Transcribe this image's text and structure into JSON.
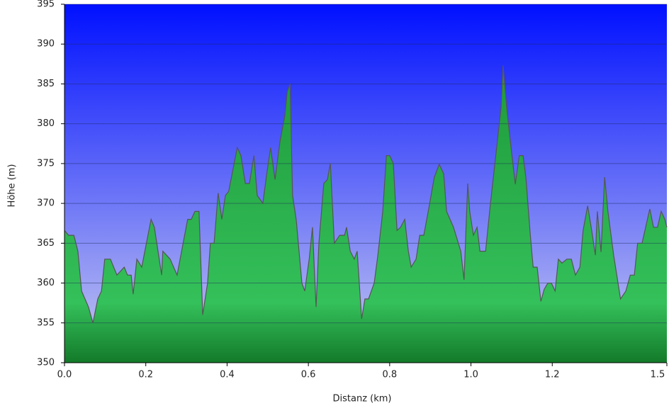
{
  "chart_data": {
    "type": "area",
    "x_label": "Distanz   (km)",
    "y_label": "Höhe (m)",
    "x": [
      0,
      0.01,
      0.023,
      0.033,
      0.042,
      0.059,
      0.07,
      0.082,
      0.091,
      0.099,
      0.113,
      0.129,
      0.147,
      0.155,
      0.164,
      0.169,
      0.178,
      0.19,
      0.213,
      0.221,
      0.239,
      0.242,
      0.26,
      0.277,
      0.303,
      0.312,
      0.321,
      0.331,
      0.34,
      0.352,
      0.359,
      0.368,
      0.378,
      0.387,
      0.396,
      0.404,
      0.425,
      0.434,
      0.445,
      0.455,
      0.466,
      0.474,
      0.488,
      0.497,
      0.507,
      0.518,
      0.53,
      0.542,
      0.548,
      0.555,
      0.561,
      0.57,
      0.584,
      0.591,
      0.602,
      0.61,
      0.619,
      0.626,
      0.638,
      0.647,
      0.654,
      0.664,
      0.677,
      0.689,
      0.694,
      0.703,
      0.713,
      0.72,
      0.731,
      0.739,
      0.748,
      0.762,
      0.771,
      0.783,
      0.792,
      0.8,
      0.809,
      0.818,
      0.827,
      0.837,
      0.846,
      0.853,
      0.865,
      0.874,
      0.884,
      0.896,
      0.91,
      0.922,
      0.933,
      0.94,
      0.957,
      0.975,
      0.983,
      0.992,
      0.997,
      1.006,
      1.015,
      1.022,
      1.036,
      1.048,
      1.062,
      1.074,
      1.079,
      1.088,
      1.097,
      1.109,
      1.119,
      1.128,
      1.135,
      1.146,
      1.153,
      1.163,
      1.172,
      1.18,
      1.189,
      1.198,
      1.207,
      1.215,
      1.224,
      1.236,
      1.247,
      1.257,
      1.268,
      1.276,
      1.287,
      1.297,
      1.306,
      1.311,
      1.32,
      1.329,
      1.337,
      1.351,
      1.368,
      1.381,
      1.392,
      1.402,
      1.41,
      1.421,
      1.432,
      1.44,
      1.449,
      1.459,
      1.468,
      1.477,
      1.482
    ],
    "y": [
      366.6,
      366,
      366,
      364,
      359,
      357,
      355,
      358,
      359,
      363,
      363,
      361,
      362,
      361,
      361,
      358.6,
      363,
      362,
      368,
      367,
      361,
      364,
      363,
      361,
      368,
      368,
      369,
      369,
      356,
      360,
      365,
      365,
      371.3,
      368,
      371,
      371.5,
      377,
      376,
      372.5,
      372.5,
      376,
      371,
      370,
      373.5,
      377,
      373,
      377.7,
      381,
      384,
      385,
      371,
      368,
      360,
      359,
      363,
      367,
      357,
      365,
      372.5,
      373,
      375,
      365,
      366,
      366,
      367,
      364,
      363,
      364,
      355.5,
      358,
      358,
      360,
      363.5,
      369,
      376,
      376,
      375,
      366.6,
      367,
      368,
      364,
      362,
      363,
      366,
      366,
      369.3,
      373.3,
      374.9,
      373.7,
      369,
      367,
      364,
      360.4,
      372.5,
      369,
      366,
      367,
      364,
      364,
      370,
      376.4,
      382,
      387.3,
      382,
      377.7,
      372.4,
      376,
      376,
      373.3,
      366,
      362,
      362,
      357.7,
      359.2,
      360,
      360,
      359,
      363,
      362.5,
      363,
      363,
      361,
      362,
      366.6,
      369.7,
      366.6,
      363.5,
      369,
      363.9,
      373.3,
      369,
      363.5,
      358,
      359,
      361,
      361,
      365,
      365,
      367.5,
      369.3,
      367,
      367,
      369,
      368,
      367
    ],
    "xlim": [
      0,
      1.482
    ],
    "ylim": [
      350,
      395
    ],
    "xticks": [
      {
        "value": 0,
        "label": "0.0"
      },
      {
        "value": 0.2,
        "label": "0.2"
      },
      {
        "value": 0.4,
        "label": "0.4"
      },
      {
        "value": 0.6,
        "label": "0.6"
      },
      {
        "value": 0.8,
        "label": "0.8"
      },
      {
        "value": 1.0,
        "label": "1.0"
      },
      {
        "value": 1.2,
        "label": "1.2"
      },
      {
        "value": 1.482,
        "label": "1.5"
      }
    ],
    "yticks": [
      350,
      355,
      360,
      365,
      370,
      375,
      380,
      385,
      390,
      395
    ],
    "grid": true
  }
}
